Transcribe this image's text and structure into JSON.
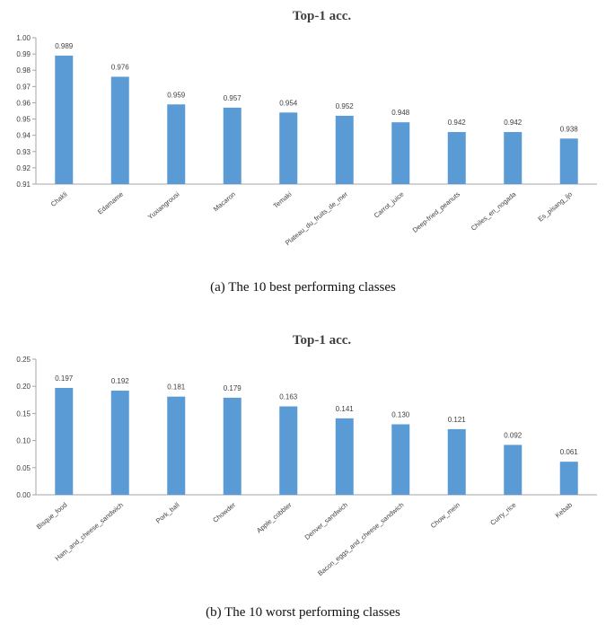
{
  "colors": {
    "bar": "#5B9BD5",
    "axis": "#a6a6a6",
    "text": "#404040"
  },
  "chart_data": [
    {
      "type": "bar",
      "title": "Top-1 acc.",
      "caption": "(a)  The 10 best performing classes",
      "categories": [
        "Chakli",
        "Edamame",
        "Yuxiangrousi",
        "Macaron",
        "Temaki",
        "Plateau_du_fruits_de_mer",
        "Carrot_juice",
        "Deep-fried_peanuts",
        "Chiles_en_nogada",
        "Es_pisang_ijo"
      ],
      "values": [
        0.989,
        0.976,
        0.959,
        0.957,
        0.954,
        0.952,
        0.948,
        0.942,
        0.942,
        0.938
      ],
      "data_labels": [
        "0.989",
        "0.976",
        "0.959",
        "0.957",
        "0.954",
        "0.952",
        "0.948",
        "0.942",
        "0.942",
        "0.938"
      ],
      "ylim": [
        0.91,
        1.0
      ],
      "yticks": [
        0.91,
        0.92,
        0.93,
        0.94,
        0.95,
        0.96,
        0.97,
        0.98,
        0.99,
        1.0
      ],
      "ytick_labels": [
        "0.91",
        "0.92",
        "0.93",
        "0.94",
        "0.95",
        "0.96",
        "0.97",
        "0.98",
        "0.99",
        "1.00"
      ],
      "xlabel": "",
      "ylabel": "",
      "grid": false,
      "legend": "none"
    },
    {
      "type": "bar",
      "title": "Top-1 acc.",
      "caption": "(b)  The 10 worst performing classes",
      "categories": [
        "Bisque_food",
        "Ham_and_cheese_sandwich",
        "Pork_ball",
        "Chowder",
        "Apple_cobbler",
        "Denver_sandwich",
        "Bacon_eggs_and_cheese_sandwich",
        "Chow_mein",
        "Curry_rice",
        "Kebab"
      ],
      "values": [
        0.197,
        0.192,
        0.181,
        0.179,
        0.163,
        0.141,
        0.13,
        0.121,
        0.092,
        0.061
      ],
      "data_labels": [
        "0.197",
        "0.192",
        "0.181",
        "0.179",
        "0.163",
        "0.141",
        "0.130",
        "0.121",
        "0.092",
        "0.061"
      ],
      "ylim": [
        0.0,
        0.25
      ],
      "yticks": [
        0.0,
        0.05,
        0.1,
        0.15,
        0.2,
        0.25
      ],
      "ytick_labels": [
        "0.00",
        "0.05",
        "0.10",
        "0.15",
        "0.20",
        "0.25"
      ],
      "xlabel": "",
      "ylabel": "",
      "grid": false,
      "legend": "none"
    }
  ]
}
